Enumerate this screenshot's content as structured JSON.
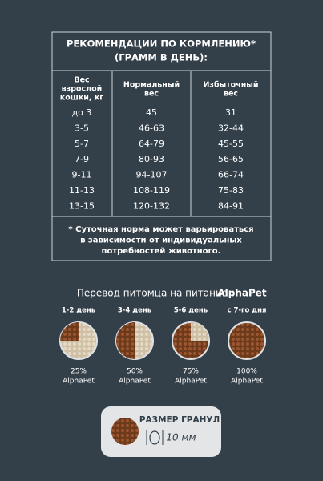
{
  "table": {
    "title_lines": [
      "РЕКОМЕНДАЦИИ ПО КОРМЛЕНИЮ*",
      "(ГРАММ В ДЕНЬ):"
    ],
    "headers": [
      [
        "Вес",
        "взрослой",
        "кошки, кг"
      ],
      [
        "Нормальный",
        "вес"
      ],
      [
        "Избыточный",
        "вес"
      ]
    ],
    "rows": [
      [
        "до 3",
        "45",
        "31"
      ],
      [
        "3-5",
        "46-63",
        "32-44"
      ],
      [
        "5-7",
        "64-79",
        "45-55"
      ],
      [
        "7-9",
        "80-93",
        "56-65"
      ],
      [
        "9-11",
        "94-107",
        "66-74"
      ],
      [
        "11-13",
        "108-119",
        "75-83"
      ],
      [
        "13-15",
        "120-132",
        "84-91"
      ]
    ],
    "footnote_lines": [
      "* Суточная норма может варьироваться",
      "в зависимости от индивидуальных",
      "потребностей животного."
    ]
  },
  "transition": {
    "title": "Перевод питомца на питание",
    "brand": "AlphaPet",
    "steps": [
      {
        "period": "1-2 день",
        "percent": "25%",
        "label": "AlphaPet"
      },
      {
        "period": "3-4 день",
        "percent": "50%",
        "label": "AlphaPet"
      },
      {
        "period": "5-6 день",
        "percent": "75%",
        "label": "AlphaPet"
      },
      {
        "period": "с 7-го дня",
        "percent": "100%",
        "label": "AlphaPet"
      }
    ]
  },
  "granule": {
    "title": "РАЗМЕР ГРАНУЛ",
    "size": "10 мм"
  }
}
